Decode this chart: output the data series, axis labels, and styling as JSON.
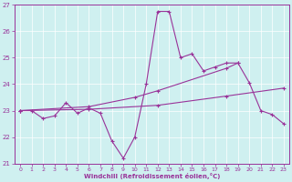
{
  "xlabel": "Windchill (Refroidissement éolien,°C)",
  "xlim": [
    -0.5,
    23.5
  ],
  "ylim": [
    21,
    27
  ],
  "yticks": [
    21,
    22,
    23,
    24,
    25,
    26,
    27
  ],
  "xticks": [
    0,
    1,
    2,
    3,
    4,
    5,
    6,
    7,
    8,
    9,
    10,
    11,
    12,
    13,
    14,
    15,
    16,
    17,
    18,
    19,
    20,
    21,
    22,
    23
  ],
  "bg_color": "#cff0f0",
  "line_color": "#993399",
  "lines": [
    {
      "x": [
        0,
        1,
        2,
        3,
        4,
        5,
        6,
        7,
        8,
        9,
        10,
        11,
        12,
        13,
        14,
        15,
        16,
        17,
        18,
        19,
        20,
        21,
        22,
        23
      ],
      "y": [
        23.0,
        23.0,
        22.7,
        22.8,
        23.3,
        22.9,
        23.1,
        22.9,
        21.85,
        21.2,
        22.0,
        24.0,
        26.75,
        26.75,
        25.0,
        25.15,
        24.5,
        24.65,
        24.8,
        24.8,
        24.05,
        23.0,
        22.85,
        22.5
      ]
    },
    {
      "x": [
        0,
        6,
        10,
        12,
        18,
        19
      ],
      "y": [
        23.0,
        23.15,
        23.5,
        23.75,
        24.6,
        24.8
      ]
    },
    {
      "x": [
        0,
        6,
        12,
        18,
        23
      ],
      "y": [
        23.0,
        23.05,
        23.2,
        23.55,
        23.85
      ]
    }
  ]
}
